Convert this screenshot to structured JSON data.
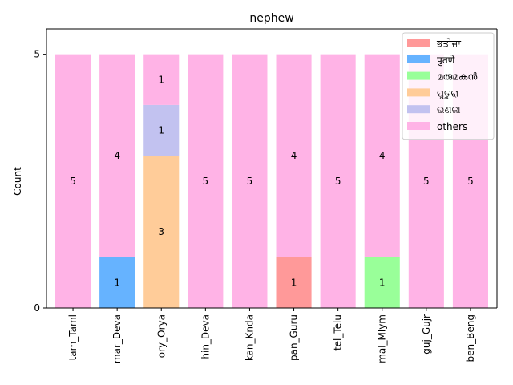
{
  "chart_data": {
    "type": "bar",
    "stacked": true,
    "title": "nephew",
    "xlabel": "",
    "ylabel": "Count",
    "ylim": [
      0,
      5.5
    ],
    "yticks": [
      0,
      5
    ],
    "categories": [
      "tam_Taml",
      "mar_Deva",
      "ory_Orya",
      "hin_Deva",
      "kan_Knda",
      "pan_Guru",
      "tel_Telu",
      "mal_Mlym",
      "guj_Gujr",
      "ben_Beng"
    ],
    "series": [
      {
        "name": "ਭਤੀਜਾ",
        "color": "#ff9999",
        "values": [
          0,
          0,
          0,
          0,
          0,
          1,
          0,
          0,
          0,
          0
        ]
      },
      {
        "name": "पुतणे",
        "color": "#66b3ff",
        "values": [
          0,
          1,
          0,
          0,
          0,
          0,
          0,
          0,
          0,
          0
        ]
      },
      {
        "name": "മരുമകൻ",
        "color": "#99ff99",
        "values": [
          0,
          0,
          0,
          0,
          0,
          0,
          0,
          1,
          0,
          0
        ]
      },
      {
        "name": "ପୁତୁରା",
        "color": "#ffcc99",
        "values": [
          0,
          0,
          3,
          0,
          0,
          0,
          0,
          0,
          0,
          0
        ]
      },
      {
        "name": "ଭଣଜା",
        "color": "#c2c2f0",
        "values": [
          0,
          0,
          1,
          0,
          0,
          0,
          0,
          0,
          0,
          0
        ]
      },
      {
        "name": "others",
        "color": "#ffb3e6",
        "values": [
          5,
          4,
          1,
          5,
          5,
          4,
          5,
          4,
          5,
          5
        ]
      }
    ],
    "legend_position": "top-right",
    "grid": false
  }
}
